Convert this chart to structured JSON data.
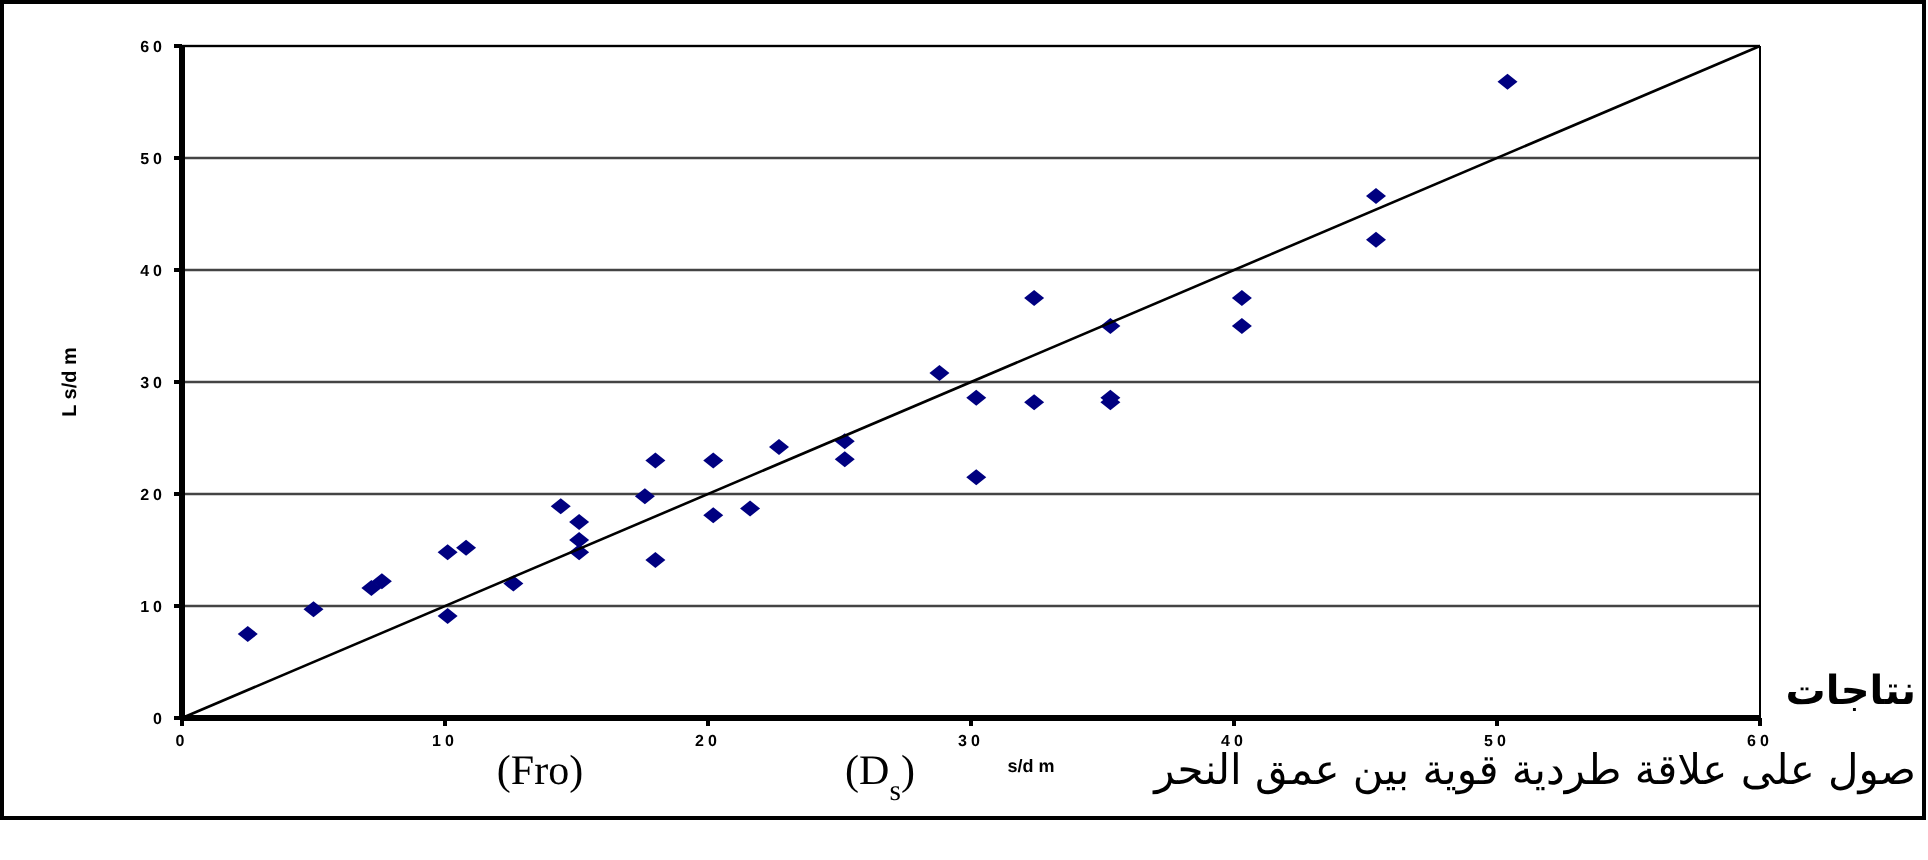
{
  "chart_data": {
    "type": "scatter",
    "xlabel": "s/d m",
    "ylabel": "L s/d m",
    "xlim": [
      0,
      60
    ],
    "ylim": [
      0,
      60
    ],
    "xticks": [
      0,
      10,
      20,
      30,
      40,
      50,
      60
    ],
    "yticks": [
      0,
      10,
      20,
      30,
      40,
      50,
      60
    ],
    "grid": "y",
    "marker": "diamond",
    "series": [
      {
        "color": "#000080",
        "x": [
          2.5,
          5,
          7.2,
          7.6,
          10.1,
          10.1,
          10.8,
          12.6,
          14.4,
          15.1,
          15.1,
          15.1,
          17.6,
          18,
          18,
          20.2,
          20.2,
          21.6,
          22.7,
          25.2,
          25.2,
          28.8,
          30.2,
          30.2,
          32.4,
          32.4,
          35.3,
          35.3,
          35.3,
          40.3,
          40.3,
          45.4,
          45.4,
          50.4
        ],
        "values": [
          7.5,
          9.7,
          11.6,
          12.2,
          14.8,
          9.1,
          15.2,
          12,
          18.9,
          17.5,
          15.9,
          14.8,
          19.8,
          23,
          14.1,
          23,
          18.1,
          18.7,
          24.2,
          24.7,
          23.1,
          30.8,
          28.6,
          21.5,
          37.5,
          28.2,
          35,
          28.6,
          28.2,
          37.5,
          35,
          46.6,
          42.7,
          56.8
        ]
      },
      {
        "type": "line",
        "color": "#000000",
        "marker": "none",
        "x": [
          0,
          60
        ],
        "values": [
          0,
          60
        ]
      }
    ],
    "annotations": [
      "نتاجات",
      "صول على علاقة طردية قوية بين عمق النحر",
      "(D$_{s}$)",
      "(Fro)"
    ]
  }
}
